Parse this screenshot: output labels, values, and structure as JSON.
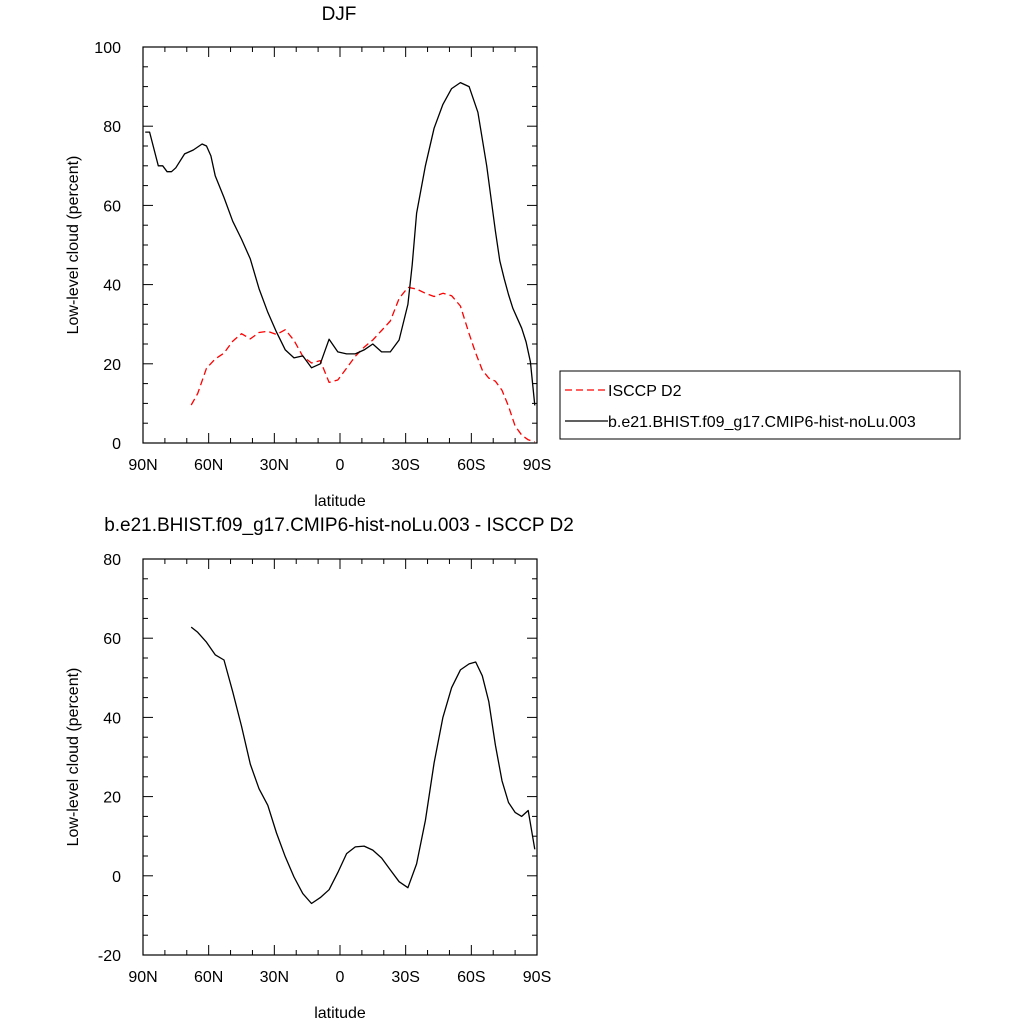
{
  "chart_data": [
    {
      "type": "line",
      "title": "DJF",
      "xlabel": "latitude",
      "ylabel": "Low-level cloud (percent)",
      "xlim": [
        -90,
        90
      ],
      "ylim": [
        0,
        100
      ],
      "xticks": [
        -90,
        -60,
        -30,
        0,
        30,
        60,
        90
      ],
      "xticklabels": [
        "90N",
        "60N",
        "30N",
        "0",
        "30S",
        "60S",
        "90S"
      ],
      "yticks": [
        0,
        20,
        40,
        60,
        80,
        100
      ],
      "yticklabels": [
        "0",
        "20",
        "40",
        "60",
        "80",
        "100"
      ],
      "legend_position": "right",
      "series": [
        {
          "name": "ISCCP D2",
          "color": "#ff0000",
          "dash": "dashed",
          "x": [
            -68,
            -65,
            -61,
            -57,
            -53,
            -49,
            -45,
            -41,
            -37,
            -33,
            -29,
            -25,
            -21,
            -17,
            -13,
            -9,
            -5,
            -1,
            3,
            7,
            11,
            15,
            19,
            23,
            27,
            31,
            35,
            39,
            43,
            47,
            51,
            55,
            59,
            62,
            65,
            68,
            71,
            74,
            77,
            80,
            83,
            86,
            89
          ],
          "y": [
            9.6,
            12.5,
            18.9,
            21.2,
            22.7,
            25.7,
            27.6,
            26.3,
            27.9,
            28.2,
            27.4,
            28.6,
            25.9,
            21.9,
            20.2,
            20.8,
            15.3,
            15.9,
            18.9,
            21.9,
            24.2,
            26.0,
            28.4,
            30.8,
            36.5,
            39.3,
            38.9,
            37.8,
            37.0,
            37.8,
            37.2,
            34.6,
            27.6,
            22.7,
            18.4,
            16.4,
            15.6,
            13.3,
            9.3,
            4.3,
            2.0,
            0.8,
            0.3
          ],
          "y_note": "values estimated from gridlines"
        },
        {
          "name": "b.e21.BHIST.f09_g17.CMIP6-hist-noLu.003",
          "color": "#000000",
          "dash": "solid",
          "x": [
            -89,
            -87,
            -83,
            -81,
            -79,
            -77,
            -75,
            -71,
            -67,
            -63,
            -61,
            -59,
            -57,
            -53,
            -49,
            -45,
            -41,
            -37,
            -33,
            -29,
            -25,
            -21,
            -17,
            -13,
            -9,
            -5,
            -1,
            3,
            7,
            11,
            15,
            19,
            23,
            27,
            31,
            33,
            35,
            39,
            43,
            47,
            51,
            55,
            59,
            63,
            67,
            71,
            73,
            75,
            77,
            79,
            81,
            83,
            85,
            87,
            89
          ],
          "y": [
            78.5,
            78.5,
            70.0,
            70.0,
            68.5,
            68.5,
            69.5,
            73.0,
            74.0,
            75.5,
            75.0,
            72.5,
            67.5,
            62.0,
            56.0,
            51.5,
            46.5,
            39.0,
            33.0,
            28.0,
            23.5,
            21.5,
            22.0,
            19.0,
            20.0,
            26.2,
            23.0,
            22.5,
            22.5,
            23.5,
            25.0,
            23.0,
            23.0,
            26.0,
            35.0,
            45.0,
            58.0,
            70.0,
            79.5,
            85.5,
            89.5,
            91.0,
            90.0,
            83.5,
            70.0,
            53.5,
            46.0,
            41.5,
            37.5,
            34.0,
            31.5,
            29.0,
            25.5,
            20.5,
            9.5
          ],
          "y_note": "values estimated from gridlines"
        }
      ]
    },
    {
      "type": "line",
      "title": "b.e21.BHIST.f09_g17.CMIP6-hist-noLu.003 - ISCCP D2",
      "xlabel": "latitude",
      "ylabel": "Low-level cloud (percent)",
      "xlim": [
        -90,
        90
      ],
      "ylim": [
        -20,
        80
      ],
      "xticks": [
        -90,
        -60,
        -30,
        0,
        30,
        60,
        90
      ],
      "xticklabels": [
        "90N",
        "60N",
        "30N",
        "0",
        "30S",
        "60S",
        "90S"
      ],
      "yticks": [
        -20,
        0,
        20,
        40,
        60,
        80
      ],
      "yticklabels": [
        "-20",
        "0",
        "20",
        "40",
        "60",
        "80"
      ],
      "series": [
        {
          "color": "#000000",
          "dash": "solid",
          "x": [
            -68,
            -65,
            -61,
            -57,
            -53,
            -49,
            -45,
            -41,
            -37,
            -33,
            -29,
            -25,
            -21,
            -17,
            -13,
            -9,
            -5,
            -1,
            3,
            7,
            11,
            15,
            19,
            23,
            27,
            31,
            35,
            39,
            43,
            47,
            51,
            55,
            59,
            62,
            65,
            68,
            71,
            74,
            77,
            80,
            83,
            86,
            89
          ],
          "y": [
            62.8,
            61.5,
            59.0,
            55.8,
            54.5,
            46.5,
            37.8,
            28.2,
            22.0,
            17.8,
            10.8,
            4.8,
            -0.3,
            -4.5,
            -7.0,
            -5.5,
            -3.5,
            0.8,
            5.6,
            7.3,
            7.5,
            6.5,
            4.5,
            1.5,
            -1.5,
            -3.0,
            3.0,
            14.0,
            28.5,
            40.0,
            47.5,
            52.0,
            53.5,
            54.0,
            50.5,
            44.0,
            33.0,
            24.0,
            18.5,
            16.0,
            15.0,
            16.5,
            6.7
          ],
          "y_note": "values estimated from gridlines"
        }
      ]
    }
  ]
}
